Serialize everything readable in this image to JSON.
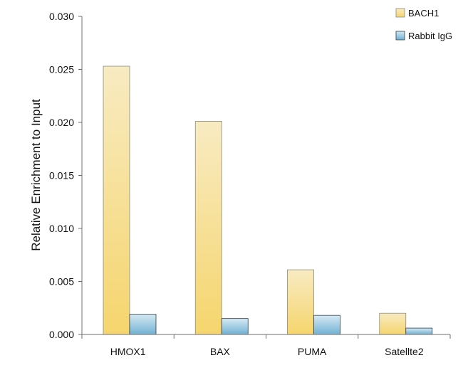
{
  "chart_data": {
    "type": "bar",
    "categories": [
      "HMOX1",
      "BAX",
      "PUMA",
      "Satellte2"
    ],
    "series": [
      {
        "name": "BACH1",
        "values": [
          0.0253,
          0.0201,
          0.0061,
          0.002
        ],
        "color_top": "#f8ebc2",
        "color_bottom": "#f5d56d",
        "stroke": "#8a8a7a"
      },
      {
        "name": "Rabbit IgG",
        "values": [
          0.0019,
          0.0015,
          0.0018,
          0.0006
        ],
        "color_top": "#d5e9f3",
        "color_bottom": "#71b1d3",
        "stroke": "#2e3e4a"
      }
    ],
    "title": "",
    "xlabel": "",
    "ylabel": "Relative Enrichment to Input",
    "ylim": [
      0,
      0.03
    ],
    "yticks": [
      "0.000",
      "0.005",
      "0.010",
      "0.015",
      "0.020",
      "0.025",
      "0.030"
    ],
    "grid": false,
    "legend_position": "top-right"
  }
}
